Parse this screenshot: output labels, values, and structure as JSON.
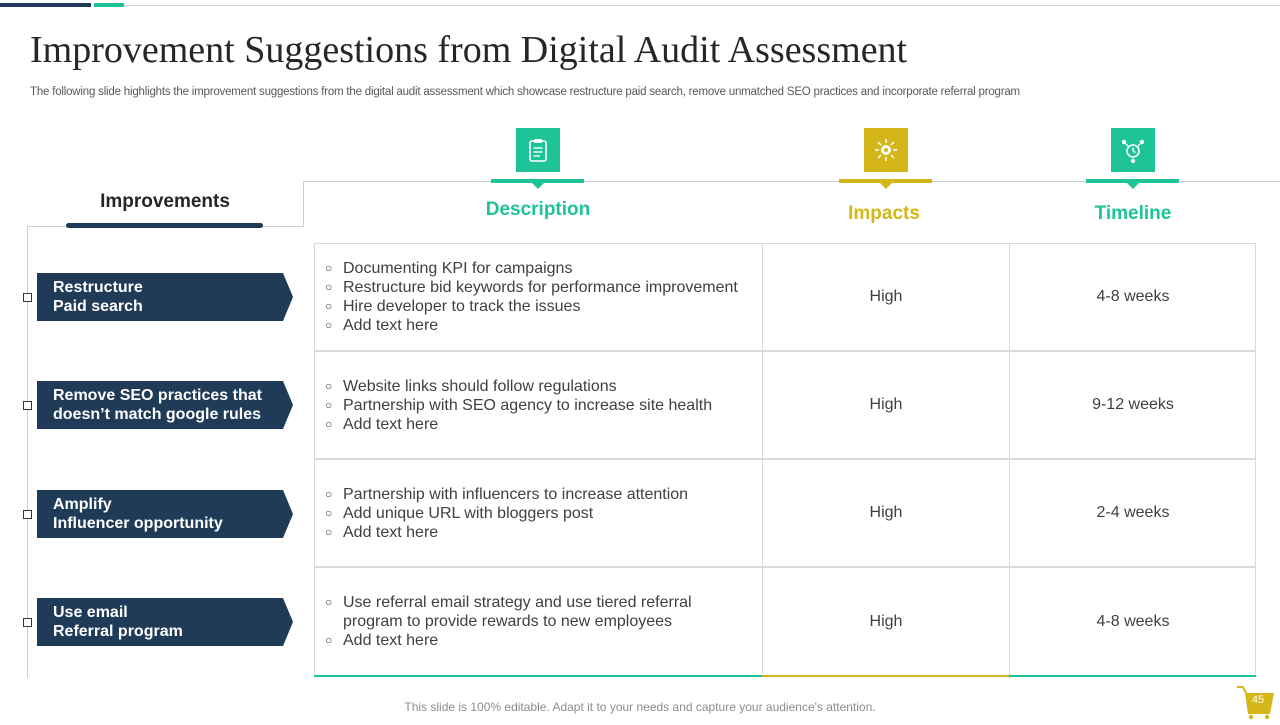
{
  "slide": {
    "title": "Improvement Suggestions from Digital Audit Assessment",
    "subtitle": "The following slide highlights the improvement suggestions from the digital audit assessment which showcase restructure paid search, remove unmatched SEO practices and incorporate referral program",
    "footer": "This slide is 100% editable. Adapt it to your needs and capture your audience's attention.",
    "page_number": "45"
  },
  "colors": {
    "dark_blue": "#1f3b57",
    "teal": "#1ec497",
    "mustard": "#d4b619",
    "text": "#404040"
  },
  "headers": {
    "improvements": "Improvements",
    "description": "Description",
    "impacts": "Impacts",
    "timeline": "Timeline"
  },
  "icons": {
    "description": "clipboard-icon",
    "impacts": "sun-gear-icon",
    "timeline": "network-clock-icon",
    "footer": "shopping-cart-icon"
  },
  "rows": [
    {
      "improvement": "Restructure\nPaid search",
      "bullets": [
        "Documenting KPI for campaigns",
        "Restructure  bid keywords for performance improvement",
        "Hire developer to track the issues",
        "Add text here"
      ],
      "impact": "High",
      "timeline": "4-8 weeks"
    },
    {
      "improvement": "Remove SEO practices that\ndoesn’t match google rules",
      "bullets": [
        "Website links should follow regulations",
        "Partnership with SEO agency to increase site health",
        "Add text here"
      ],
      "impact": "High",
      "timeline": "9-12 weeks"
    },
    {
      "improvement": "Amplify\nInfluencer opportunity",
      "bullets": [
        "Partnership with influencers to increase attention",
        "Add unique URL with bloggers post",
        "Add text here"
      ],
      "impact": "High",
      "timeline": "2-4 weeks"
    },
    {
      "improvement": "Use email\nReferral program",
      "bullets": [
        "Use referral email strategy and use tiered  referral program to provide rewards to new employees",
        "Add text here"
      ],
      "impact": "High",
      "timeline": "4-8 weeks"
    }
  ]
}
